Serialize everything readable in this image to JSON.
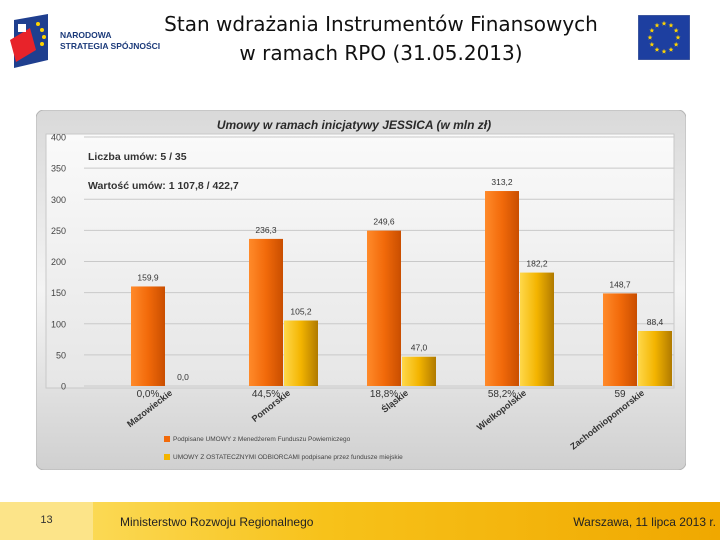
{
  "header": {
    "logo_line1": "NARODOWA",
    "logo_line2": "STRATEGIA SPÓJNOŚCI",
    "title_line1": "Stan wdrażania Instrumentów Finansowych",
    "title_line2": "w ramach RPO (31.05.2013)"
  },
  "footer": {
    "page_number": "13",
    "ministry": "Ministerstwo Rozwoju Regionalnego",
    "date": "Warszawa, 11 lipca 2013 r."
  },
  "colors": {
    "series1": "#f26a0a",
    "series2": "#f3b400",
    "footer": "#f7c21a"
  },
  "chart_data": {
    "type": "bar",
    "title": "Umowy w ramach inicjatywy JESSICA (w mln zł)",
    "annotations": [
      "Liczba umów: 5  /  35",
      "Wartość umów: 1 107,8  /  422,7"
    ],
    "categories": [
      "Mazowieckie",
      "Pomorskie",
      "Śląskie",
      "Wielkopolskie",
      "Zachodniopomorskie"
    ],
    "series": [
      {
        "name": "Podpisane UMOWY z Menedżerem Funduszu Powierniczego",
        "values": [
          159.9,
          236.3,
          249.6,
          313.2,
          148.7
        ],
        "labels": [
          "159,9",
          "236,3",
          "249,6",
          "313,2",
          "148,7"
        ]
      },
      {
        "name": "UMOWY Z OSTATECZNYMI ODBIORCAMI podpisane przez fundusze miejskie",
        "values": [
          0.0,
          105.2,
          47.0,
          182.2,
          88.4
        ],
        "labels": [
          "0,0",
          "105,2",
          "47,0",
          "182,2",
          "88,4"
        ]
      }
    ],
    "percent_labels": [
      "0,0%",
      "44,5%",
      "18,8%",
      "58,2%",
      "59"
    ],
    "y_ticks": [
      "0",
      "50",
      "100",
      "150",
      "200",
      "250",
      "300",
      "350",
      "400"
    ],
    "ylim": [
      0,
      400
    ],
    "grid": true,
    "legend_position": "bottom-left"
  }
}
